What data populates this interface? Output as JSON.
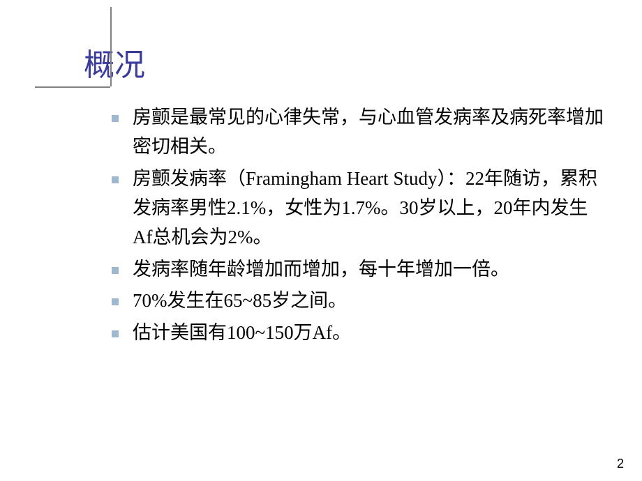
{
  "slide": {
    "title": "概况",
    "title_color": "#3b3b9b",
    "title_fontsize": 44,
    "rule_color": "#808080",
    "bullet_color": "#9fb8cd",
    "body_fontsize": 27,
    "bullets": [
      "房颤是最常见的心律失常，与心血管发病率及病死率增加密切相关。",
      "房颤发病率（Framingham Heart Study）：22年随访，累积发病率男性2.1%，女性为1.7%。30岁以上，20年内发生Af总机会为2%。",
      "发病率随年龄增加而增加，每十年增加一倍。",
      "70%发生在65~85岁之间。",
      "估计美国有100~150万Af。"
    ],
    "page_number": "2",
    "background_color": "#ffffff"
  }
}
